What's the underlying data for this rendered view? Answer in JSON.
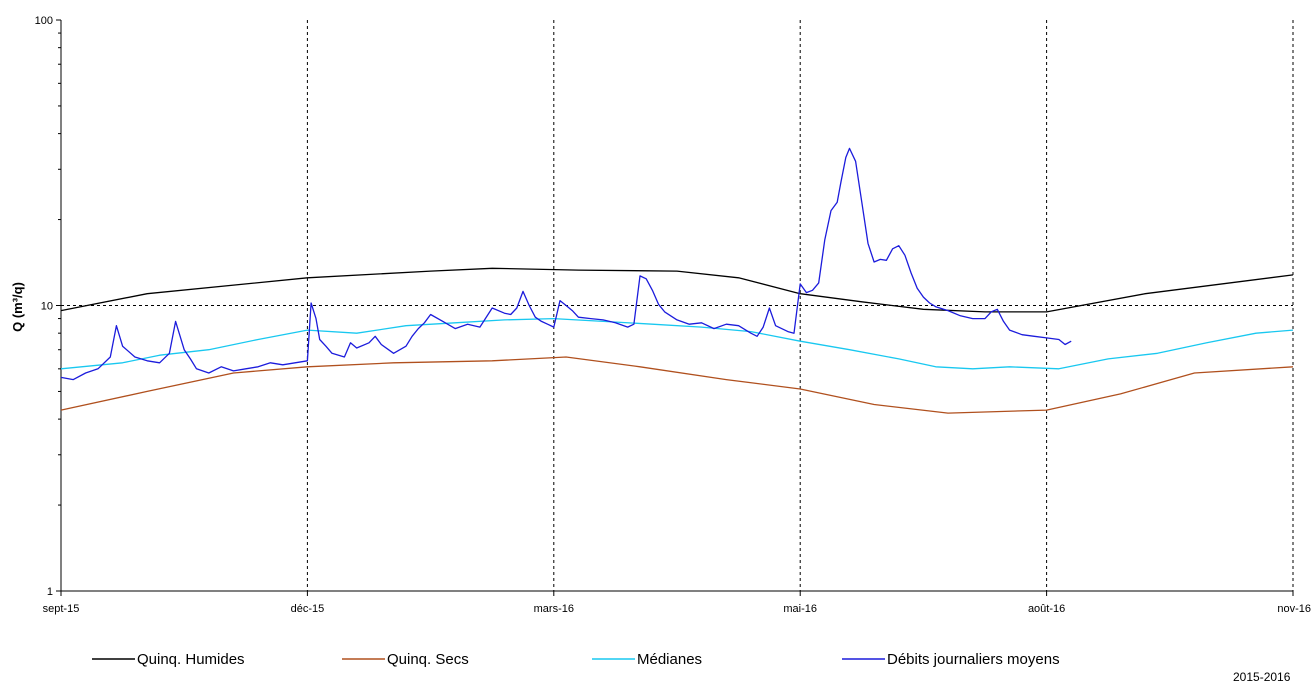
{
  "chart_data": {
    "type": "line",
    "ylabel": "Q (m³/q)",
    "yscale": "log",
    "ylim": [
      1,
      100
    ],
    "y_ticks": [
      "1",
      "10",
      "100"
    ],
    "x_ticks": [
      "sept-15",
      "déc-15",
      "mars-16",
      "mai-16",
      "août-16",
      "nov-16"
    ],
    "grid": true,
    "legend_position": "bottom",
    "footnote": "2015-2016",
    "series": [
      {
        "name": "Quinq. Humides",
        "color": "#000000",
        "points": [
          [
            0,
            9.6
          ],
          [
            0.07,
            11.0
          ],
          [
            0.2,
            12.5
          ],
          [
            0.3,
            13.2
          ],
          [
            0.35,
            13.5
          ],
          [
            0.42,
            13.3
          ],
          [
            0.5,
            13.2
          ],
          [
            0.55,
            12.5
          ],
          [
            0.6,
            11.0
          ],
          [
            0.65,
            10.3
          ],
          [
            0.7,
            9.7
          ],
          [
            0.75,
            9.5
          ],
          [
            0.8,
            9.5
          ],
          [
            0.88,
            11.0
          ],
          [
            1.0,
            12.8
          ]
        ]
      },
      {
        "name": "Quinq. Secs",
        "color": "#b0501e",
        "points": [
          [
            0,
            4.3
          ],
          [
            0.07,
            5.0
          ],
          [
            0.14,
            5.8
          ],
          [
            0.2,
            6.1
          ],
          [
            0.27,
            6.3
          ],
          [
            0.35,
            6.4
          ],
          [
            0.41,
            6.6
          ],
          [
            0.47,
            6.1
          ],
          [
            0.54,
            5.5
          ],
          [
            0.6,
            5.1
          ],
          [
            0.66,
            4.5
          ],
          [
            0.72,
            4.2
          ],
          [
            0.8,
            4.3
          ],
          [
            0.86,
            4.9
          ],
          [
            0.92,
            5.8
          ],
          [
            1.0,
            6.1
          ]
        ]
      },
      {
        "name": "Médianes",
        "color": "#19c8f0",
        "points": [
          [
            0,
            6.0
          ],
          [
            0.05,
            6.3
          ],
          [
            0.08,
            6.7
          ],
          [
            0.12,
            7.0
          ],
          [
            0.16,
            7.6
          ],
          [
            0.2,
            8.2
          ],
          [
            0.24,
            8.0
          ],
          [
            0.28,
            8.5
          ],
          [
            0.32,
            8.7
          ],
          [
            0.36,
            8.9
          ],
          [
            0.4,
            9.0
          ],
          [
            0.44,
            8.8
          ],
          [
            0.48,
            8.6
          ],
          [
            0.52,
            8.4
          ],
          [
            0.56,
            8.1
          ],
          [
            0.6,
            7.5
          ],
          [
            0.64,
            7.0
          ],
          [
            0.68,
            6.5
          ],
          [
            0.71,
            6.1
          ],
          [
            0.74,
            6.0
          ],
          [
            0.77,
            6.1
          ],
          [
            0.81,
            6.0
          ],
          [
            0.85,
            6.5
          ],
          [
            0.89,
            6.8
          ],
          [
            0.93,
            7.4
          ],
          [
            0.97,
            8.0
          ],
          [
            1.0,
            8.2
          ]
        ]
      },
      {
        "name": "Débits journaliers moyens",
        "color": "#1c1cdc",
        "points": [
          [
            0,
            5.6
          ],
          [
            0.01,
            5.5
          ],
          [
            0.02,
            5.8
          ],
          [
            0.03,
            6.0
          ],
          [
            0.04,
            6.6
          ],
          [
            0.045,
            8.5
          ],
          [
            0.05,
            7.2
          ],
          [
            0.06,
            6.6
          ],
          [
            0.07,
            6.4
          ],
          [
            0.08,
            6.3
          ],
          [
            0.088,
            6.8
          ],
          [
            0.093,
            8.8
          ],
          [
            0.1,
            7.0
          ],
          [
            0.105,
            6.5
          ],
          [
            0.11,
            6.0
          ],
          [
            0.12,
            5.8
          ],
          [
            0.13,
            6.1
          ],
          [
            0.14,
            5.9
          ],
          [
            0.15,
            6.0
          ],
          [
            0.16,
            6.1
          ],
          [
            0.17,
            6.3
          ],
          [
            0.18,
            6.2
          ],
          [
            0.19,
            6.3
          ],
          [
            0.2,
            6.4
          ],
          [
            0.203,
            10.2
          ],
          [
            0.207,
            9.0
          ],
          [
            0.21,
            7.6
          ],
          [
            0.215,
            7.2
          ],
          [
            0.22,
            6.8
          ],
          [
            0.23,
            6.6
          ],
          [
            0.235,
            7.4
          ],
          [
            0.24,
            7.1
          ],
          [
            0.25,
            7.4
          ],
          [
            0.255,
            7.8
          ],
          [
            0.26,
            7.3
          ],
          [
            0.27,
            6.8
          ],
          [
            0.28,
            7.2
          ],
          [
            0.285,
            7.8
          ],
          [
            0.29,
            8.3
          ],
          [
            0.295,
            8.7
          ],
          [
            0.3,
            9.3
          ],
          [
            0.31,
            8.8
          ],
          [
            0.32,
            8.3
          ],
          [
            0.33,
            8.6
          ],
          [
            0.34,
            8.4
          ],
          [
            0.35,
            9.8
          ],
          [
            0.36,
            9.4
          ],
          [
            0.365,
            9.3
          ],
          [
            0.37,
            9.8
          ],
          [
            0.375,
            11.2
          ],
          [
            0.38,
            10.0
          ],
          [
            0.385,
            9.1
          ],
          [
            0.39,
            8.8
          ],
          [
            0.395,
            8.6
          ],
          [
            0.4,
            8.4
          ],
          [
            0.405,
            10.4
          ],
          [
            0.41,
            10.0
          ],
          [
            0.415,
            9.6
          ],
          [
            0.42,
            9.1
          ],
          [
            0.43,
            9.0
          ],
          [
            0.44,
            8.9
          ],
          [
            0.45,
            8.7
          ],
          [
            0.46,
            8.4
          ],
          [
            0.465,
            8.6
          ],
          [
            0.47,
            12.7
          ],
          [
            0.475,
            12.4
          ],
          [
            0.48,
            11.3
          ],
          [
            0.485,
            10.1
          ],
          [
            0.49,
            9.5
          ],
          [
            0.5,
            8.9
          ],
          [
            0.51,
            8.6
          ],
          [
            0.52,
            8.7
          ],
          [
            0.53,
            8.3
          ],
          [
            0.54,
            8.6
          ],
          [
            0.55,
            8.5
          ],
          [
            0.56,
            8.0
          ],
          [
            0.565,
            7.8
          ],
          [
            0.57,
            8.4
          ],
          [
            0.575,
            9.8
          ],
          [
            0.58,
            8.5
          ],
          [
            0.59,
            8.1
          ],
          [
            0.595,
            8.0
          ],
          [
            0.6,
            11.9
          ],
          [
            0.605,
            11.1
          ],
          [
            0.61,
            11.3
          ],
          [
            0.615,
            12.0
          ],
          [
            0.62,
            17.0
          ],
          [
            0.625,
            21.5
          ],
          [
            0.63,
            23.0
          ],
          [
            0.633,
            27.0
          ],
          [
            0.637,
            33.0
          ],
          [
            0.64,
            35.5
          ],
          [
            0.645,
            32.0
          ],
          [
            0.65,
            23.0
          ],
          [
            0.655,
            16.5
          ],
          [
            0.66,
            14.2
          ],
          [
            0.665,
            14.5
          ],
          [
            0.67,
            14.4
          ],
          [
            0.675,
            15.8
          ],
          [
            0.68,
            16.2
          ],
          [
            0.685,
            15.0
          ],
          [
            0.69,
            13.0
          ],
          [
            0.695,
            11.5
          ],
          [
            0.7,
            10.7
          ],
          [
            0.705,
            10.2
          ],
          [
            0.71,
            9.9
          ],
          [
            0.72,
            9.6
          ],
          [
            0.73,
            9.2
          ],
          [
            0.74,
            9.0
          ],
          [
            0.75,
            9.0
          ],
          [
            0.755,
            9.5
          ],
          [
            0.76,
            9.7
          ],
          [
            0.765,
            8.8
          ],
          [
            0.77,
            8.2
          ],
          [
            0.78,
            7.9
          ],
          [
            0.79,
            7.8
          ],
          [
            0.8,
            7.7
          ],
          [
            0.81,
            7.6
          ],
          [
            0.815,
            7.3
          ],
          [
            0.82,
            7.5
          ]
        ]
      }
    ]
  }
}
